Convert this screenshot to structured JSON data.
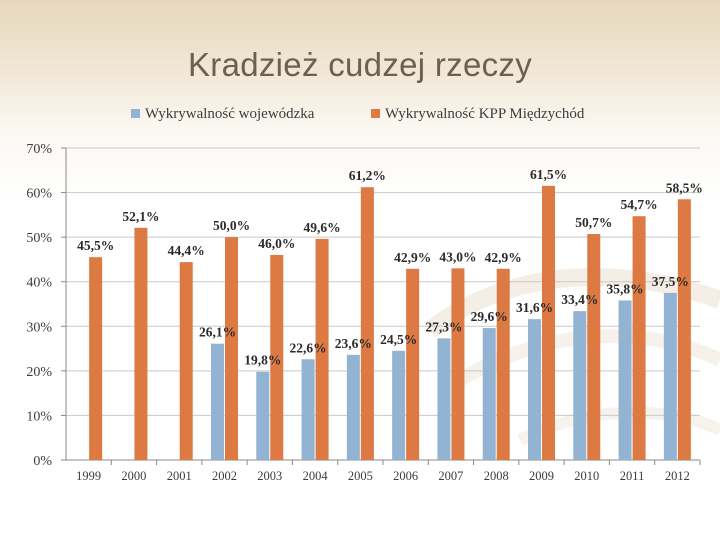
{
  "slide": {
    "title": "Kradzież cudzej rzeczy"
  },
  "colors": {
    "series_1": "#93b3d2",
    "series_2": "#dd7a43",
    "grid": "#c9c9c9",
    "axis": "#8a8a8a"
  },
  "chart_data": {
    "type": "bar",
    "title": "",
    "xlabel": "",
    "ylabel": "",
    "ylim": [
      0,
      70
    ],
    "ytick_step": 10,
    "ytick_labels": [
      "0%",
      "10%",
      "20%",
      "30%",
      "40%",
      "50%",
      "60%",
      "70%"
    ],
    "categories": [
      "1999",
      "2000",
      "2001",
      "2002",
      "2003",
      "2004",
      "2005",
      "2006",
      "2007",
      "2008",
      "2009",
      "2010",
      "2011",
      "2012"
    ],
    "legend_position": "top",
    "series": [
      {
        "name": "Wykrywalność wojewódzka",
        "values": [
          null,
          null,
          null,
          26.1,
          19.8,
          22.6,
          23.6,
          24.5,
          27.3,
          29.6,
          31.6,
          33.4,
          35.8,
          37.5
        ],
        "labels": [
          "",
          "",
          "",
          "26,1%",
          "19,8%",
          "22,6%",
          "23,6%",
          "24,5%",
          "27,3%",
          "29,6%",
          "31,6%",
          "33,4%",
          "35,8%",
          "37,5%"
        ]
      },
      {
        "name": "Wykrywalność KPP Międzychód",
        "values": [
          45.5,
          52.1,
          44.4,
          50.0,
          46.0,
          49.6,
          61.2,
          42.9,
          43.0,
          42.9,
          61.5,
          50.7,
          54.7,
          58.5
        ],
        "labels": [
          "45,5%",
          "52,1%",
          "44,4%",
          "50,0%",
          "46,0%",
          "49,6%",
          "61,2%",
          "42,9%",
          "43,0%",
          "42,9%",
          "61,5%",
          "50,7%",
          "54,7%",
          "58,5%"
        ]
      }
    ]
  }
}
